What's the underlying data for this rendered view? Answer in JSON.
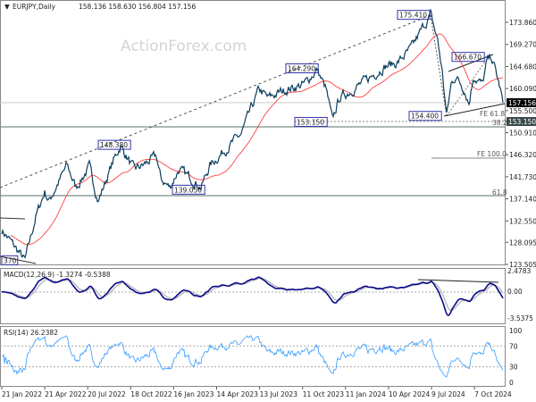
{
  "header": {
    "symbol": "EURJPY,Daily",
    "ohlc": "158.136 158.630 156.804 157.156"
  },
  "watermark": "ActionForex.com",
  "colors": {
    "price": "#0b3d5c",
    "ma": "#ff4040",
    "macd": "#0a0a8a",
    "signal": "#bbbbbb",
    "rsi": "#3399ff",
    "label_border": "#3333aa"
  },
  "chart_data": {
    "type": "line",
    "title": "EURJPY,Daily",
    "price_axis": {
      "ylim": [
        123.505,
        173.86
      ],
      "ticks": [
        "173.860",
        "169.270",
        "164.680",
        "160.090",
        "155.500",
        "150.910",
        "146.320",
        "141.730",
        "137.140",
        "132.550",
        "128.095",
        "123.505"
      ]
    },
    "current_price": "157.156",
    "level_label": "153.150",
    "x": [
      2,
      8,
      28,
      40,
      50,
      55,
      75,
      85,
      100,
      110,
      127,
      135,
      150,
      160,
      175,
      180,
      190,
      200,
      215,
      225,
      235,
      255,
      270,
      280,
      290,
      300,
      320,
      340,
      355,
      365,
      372,
      380,
      395,
      410,
      430,
      445,
      460,
      475,
      482,
      490,
      495,
      500,
      505,
      510,
      520,
      525,
      530,
      540,
      545,
      550,
      555,
      560,
      563
    ],
    "close_approx": [
      130.6,
      129.3,
      124.3,
      133.4,
      138.6,
      136.7,
      144.1,
      139.5,
      143.8,
      136.7,
      145.1,
      148.2,
      143.2,
      144.1,
      146.0,
      141.3,
      139.5,
      143.2,
      141.3,
      139.5,
      144.1,
      147.9,
      150.6,
      155.3,
      159.9,
      158.1,
      159.9,
      160.9,
      164.0,
      159.9,
      153.4,
      158.1,
      159.9,
      161.8,
      164.6,
      165.5,
      168.3,
      173.3,
      175.4,
      170.1,
      163.6,
      154.4,
      160.9,
      162.7,
      159.9,
      157.1,
      162.7,
      160.9,
      165.5,
      166.7,
      163.6,
      159.9,
      157.2
    ],
    "annotations": [
      {
        "text": "175.410",
        "price": 175.41,
        "bar": 445
      },
      {
        "text": "166.670",
        "price": 166.67,
        "bar": 506
      },
      {
        "text": "164.290",
        "price": 164.29,
        "bar": 320
      },
      {
        "text": "154.400",
        "price": 154.4,
        "bar": 458
      },
      {
        "text": "153.150",
        "price": 153.15,
        "bar": 330
      },
      {
        "text": "148.380",
        "price": 148.38,
        "bar": 110
      },
      {
        "text": "139.050",
        "price": 139.05,
        "bar": 193
      },
      {
        "text": "370",
        "price": 124.37,
        "bar": 2
      }
    ],
    "fib_labels": {
      "fe618": "FE 61.8",
      "r382": "38.2",
      "fe100": "FE 100.0",
      "r618": "61.8"
    },
    "macd": {
      "label": "MACD(12,26,9) -1.3274 -0.5388",
      "ticks": [
        "2.4783",
        "0.00",
        "-3.5375"
      ]
    },
    "rsi": {
      "label": "RSI(14) 26.2382",
      "ticks": [
        "100",
        "70",
        "30",
        "0"
      ]
    },
    "dates": [
      "21 Jan 2022",
      "21 Apr 2022",
      "20 Jul 2022",
      "18 Oct 2022",
      "16 Jan 2023",
      "14 Apr 2023",
      "13 Jul 2023",
      "11 Oct 2023",
      "11 Jan 2024",
      "10 Apr 2024",
      "9 Jul 2024",
      "7 Oct 2024"
    ]
  }
}
